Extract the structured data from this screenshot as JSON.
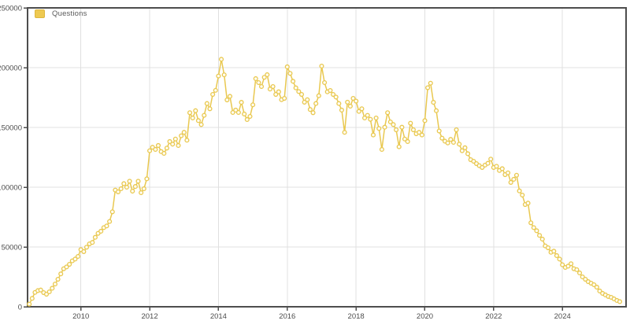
{
  "legend": {
    "items": [
      {
        "label": "Questions",
        "swatch_color": "#eec951",
        "swatch_border": "#ddb63e"
      }
    ]
  },
  "colors": {
    "background": "#ffffff",
    "frame": "#4d4d4d",
    "gridline": "#e0e0e0",
    "tick_label": "#4d4d4d",
    "line": "#e9c850",
    "marker_fill": "#fffdf2"
  },
  "chart_data": {
    "type": "line",
    "title": "",
    "xlabel": "",
    "ylabel": "",
    "grid": true,
    "legend_position": "top-left",
    "xlim": [
      2008.45,
      2025.85
    ],
    "ylim": [
      0,
      250000
    ],
    "x_ticks": [
      2010,
      2012,
      2014,
      2016,
      2018,
      2020,
      2022,
      2024
    ],
    "y_ticks": [
      0,
      50000,
      100000,
      150000,
      200000,
      250000
    ],
    "series": [
      {
        "name": "Questions",
        "start_year": 2008,
        "start_month": 7,
        "interval": "monthly",
        "values": [
          2200,
          7000,
          12000,
          13500,
          14000,
          11800,
          10500,
          12500,
          15500,
          19000,
          23000,
          27500,
          31800,
          33300,
          35500,
          38400,
          39900,
          42100,
          47800,
          46100,
          49800,
          52600,
          53800,
          58100,
          61400,
          63200,
          66200,
          67600,
          71300,
          79400,
          97600,
          96100,
          98700,
          103000,
          100000,
          105000,
          96700,
          100600,
          105000,
          95400,
          98700,
          107000,
          130500,
          133400,
          131600,
          134900,
          129800,
          128300,
          132700,
          138200,
          136000,
          140300,
          134900,
          143000,
          145900,
          139300,
          162300,
          157900,
          164000,
          155700,
          152400,
          160100,
          170000,
          165600,
          177600,
          181000,
          193000,
          207000,
          194000,
          173000,
          176000,
          162500,
          164500,
          162500,
          171000,
          161200,
          156600,
          159200,
          168900,
          190800,
          187500,
          184200,
          191900,
          194100,
          182100,
          184200,
          177600,
          179800,
          173200,
          174300,
          200700,
          195200,
          188600,
          183100,
          180000,
          177600,
          171100,
          173200,
          165000,
          162300,
          170000,
          176500,
          201300,
          187500,
          179800,
          180900,
          177600,
          175400,
          170000,
          164500,
          145900,
          171100,
          167800,
          174300,
          172000,
          163400,
          165600,
          157900,
          160100,
          156800,
          143700,
          157900,
          149100,
          131600,
          150200,
          162300,
          154600,
          152400,
          148000,
          133800,
          150200,
          140300,
          138200,
          153500,
          148000,
          144700,
          145900,
          143700,
          155700,
          183200,
          187000,
          171000,
          164000,
          147000,
          141000,
          138500,
          137000,
          140000,
          137500,
          148000,
          136000,
          130500,
          133000,
          128000,
          123000,
          121700,
          119700,
          118000,
          116500,
          118500,
          120000,
          123500,
          116500,
          117500,
          114000,
          115500,
          110500,
          112000,
          104000,
          106600,
          110000,
          96900,
          93400,
          85500,
          86700,
          70200,
          66200,
          63600,
          59700,
          56600,
          50900,
          49300,
          45600,
          46500,
          42800,
          39900,
          35100,
          32900,
          34000,
          36000,
          31800,
          31000,
          28300,
          25000,
          23000,
          21000,
          19700,
          18400,
          16400,
          13200,
          11200,
          9900,
          8600,
          7900,
          6600,
          5300,
          4300
        ]
      }
    ]
  }
}
